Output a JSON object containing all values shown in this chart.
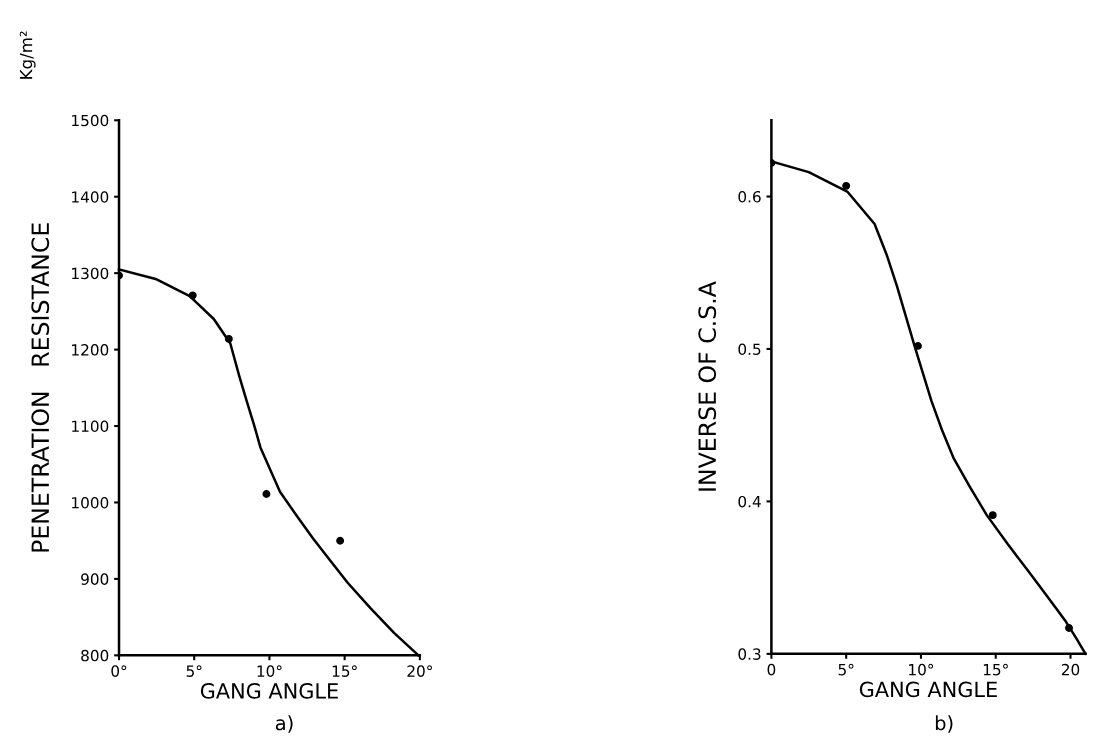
{
  "chart_data": [
    {
      "type": "scatter",
      "xlabel": "GANG ANGLE",
      "ylabel": "PENETRATION   RESISTANCE",
      "annotations": [
        "Kg/m²",
        "a)"
      ],
      "xlim": [
        0,
        20
      ],
      "ylim": [
        800,
        1500
      ],
      "xticks": [
        {
          "value": 0,
          "label": "0°"
        },
        {
          "value": 5,
          "label": "5°"
        },
        {
          "value": 10,
          "label": "10°"
        },
        {
          "value": 15,
          "label": "15°"
        },
        {
          "value": 20,
          "label": "20°"
        }
      ],
      "yticks": [
        800,
        900,
        1000,
        1100,
        1200,
        1300,
        1400,
        1500
      ],
      "grid": false,
      "legend": false,
      "series": [
        {
          "color": "#000000",
          "marker": "circle",
          "x": [
            0,
            4.9,
            7.3,
            9.8,
            14.7
          ],
          "values": [
            1297,
            1271,
            1214,
            1011,
            950
          ]
        },
        {
          "type": "line",
          "color": "#000000",
          "marker": "none",
          "line_style": "solid",
          "x": [
            0,
            2.5,
            4.7,
            6.3,
            7.4,
            8.0,
            8.5,
            9.0,
            9.4,
            10.7,
            11.8,
            12.9,
            14.0,
            15.2,
            16.7,
            18.3,
            19.9
          ],
          "values": [
            1305,
            1292,
            1270,
            1240,
            1208,
            1165,
            1132,
            1100,
            1072,
            1014,
            983,
            953,
            925,
            895,
            862,
            829,
            800
          ]
        }
      ]
    },
    {
      "type": "scatter",
      "xlabel": "GANG ANGLE",
      "ylabel": "INVERSE OF C.S.A",
      "annotations": [
        "b)"
      ],
      "xlim": [
        0,
        21
      ],
      "ylim": [
        0.3,
        0.65
      ],
      "xticks": [
        {
          "value": 0,
          "label": "0"
        },
        {
          "value": 5,
          "label": "5°"
        },
        {
          "value": 10,
          "label": "10°"
        },
        {
          "value": 15,
          "label": "15°"
        },
        {
          "value": 20,
          "label": "20"
        }
      ],
      "yticks": [
        0.3,
        0.4,
        0.5,
        0.6
      ],
      "grid": false,
      "legend": false,
      "series": [
        {
          "color": "#000000",
          "marker": "circle",
          "x": [
            0,
            5.0,
            9.8,
            14.8,
            19.9
          ],
          "values": [
            0.622,
            0.607,
            0.502,
            0.391,
            0.317
          ]
        },
        {
          "type": "line",
          "color": "#000000",
          "marker": "none",
          "line_style": "solid",
          "x": [
            0,
            2.5,
            5.1,
            6.9,
            7.7,
            8.4,
            9.0,
            9.6,
            10.7,
            11.4,
            12.2,
            13.3,
            14.4,
            15.8,
            17.2,
            18.5,
            19.7,
            20.4,
            21.0
          ],
          "values": [
            0.623,
            0.616,
            0.603,
            0.582,
            0.562,
            0.541,
            0.521,
            0.501,
            0.466,
            0.447,
            0.428,
            0.409,
            0.391,
            0.372,
            0.354,
            0.337,
            0.321,
            0.31,
            0.3
          ]
        }
      ]
    }
  ]
}
